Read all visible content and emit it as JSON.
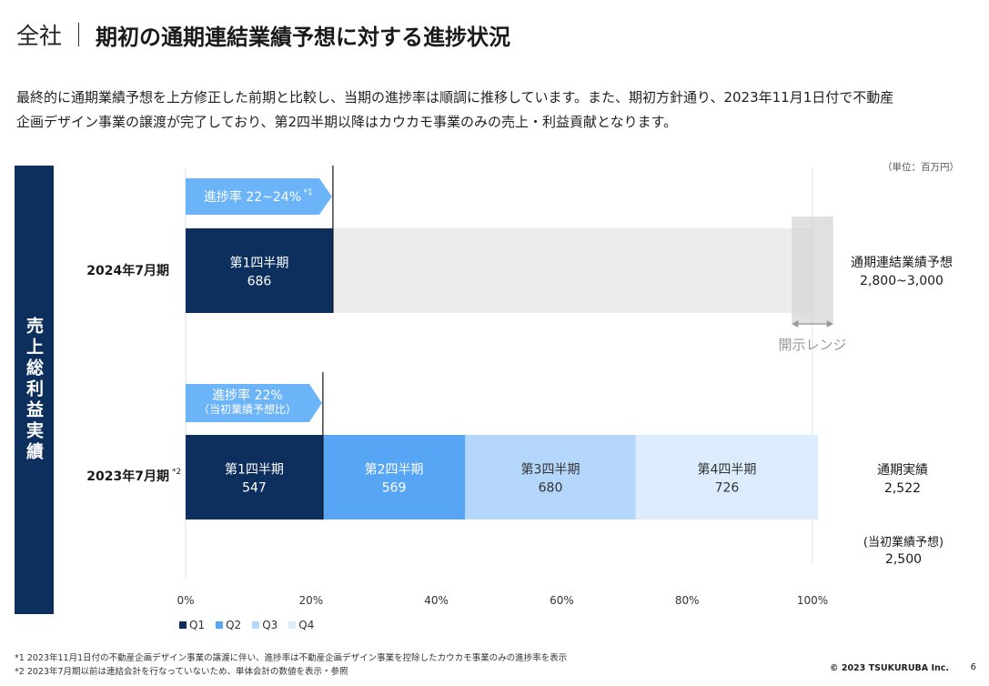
{
  "header": {
    "company": "全社",
    "title": "期初の通期連結業績予想に対する進捗状況"
  },
  "description": {
    "line1": "最終的に通期業績予想を上方修正した前期と比較し、当期の進捗率は順調に推移しています。また、期初方針通り、2023年11月1日付で不動産",
    "line2": "企画デザイン事業の譲渡が完了しており、第2四半期以降はカウカモ事業のみの売上・利益貢献となります。"
  },
  "unit_label": "（単位：百万円）",
  "side_label": "売上総利益実績",
  "chart_data": {
    "type": "bar",
    "orientation": "horizontal-stacked",
    "x_axis": {
      "ticks": [
        "0%",
        "20%",
        "40%",
        "60%",
        "80%",
        "100%"
      ],
      "range": [
        0,
        100
      ]
    },
    "rows": [
      {
        "label": "2024年7月期",
        "label_note": "",
        "segments": [
          {
            "name": "第1四半期",
            "value": 686,
            "percent": 23.5,
            "color": "#0d2f5e"
          }
        ],
        "remainder_percent": 76.5,
        "progress_label": "進捗率 22~24%",
        "progress_note": "*1",
        "progress_sublabel": "",
        "progress_percent": 23.5,
        "range_percent": [
          96.7,
          103.3
        ],
        "range_label": "開示レンジ",
        "total_label": "通期連結業績予想",
        "total_value": "2,800~3,000"
      },
      {
        "label": "2023年7月期",
        "label_note": "*2",
        "segments": [
          {
            "name": "第1四半期",
            "value": 547,
            "percent": 21.9,
            "color": "#0d2f5e"
          },
          {
            "name": "第2四半期",
            "value": 569,
            "percent": 22.7,
            "color": "#57a5f5"
          },
          {
            "name": "第3四半期",
            "value": 680,
            "percent": 27.2,
            "color": "#b5d6fb"
          },
          {
            "name": "第4四半期",
            "value": 726,
            "percent": 29.1,
            "color": "#dcecfd"
          }
        ],
        "progress_label": "進捗率 22%",
        "progress_note": "",
        "progress_sublabel": "（当初業績予想比）",
        "progress_percent": 21.9,
        "total_label": "通期実績",
        "total_value": "2,522",
        "initial_label": "(当初業績予想)",
        "initial_value": "2,500"
      }
    ],
    "legend": [
      {
        "name": "Q1",
        "color": "#0d2f5e"
      },
      {
        "name": "Q2",
        "color": "#57a5f5"
      },
      {
        "name": "Q3",
        "color": "#b5d6fb"
      },
      {
        "name": "Q4",
        "color": "#dcecfd"
      }
    ],
    "colors": {
      "remainder": "#ececec",
      "range": "#d6d6d6",
      "arrow": "#6cb4f8",
      "gridline": "#e0e0e0"
    }
  },
  "footnotes": {
    "note1": "*1 2023年11月1日付の不動産企画デザイン事業の譲渡に伴い、進捗率は不動産企画デザイン事業を控除したカウカモ事業のみの進捗率を表示",
    "note2": "*2 2023年7月期以前は連結会計を行なっていないため、単体会計の数値を表示・参照"
  },
  "footer": {
    "copyright": "© 2023 TSUKURUBA Inc.",
    "page": "6"
  }
}
